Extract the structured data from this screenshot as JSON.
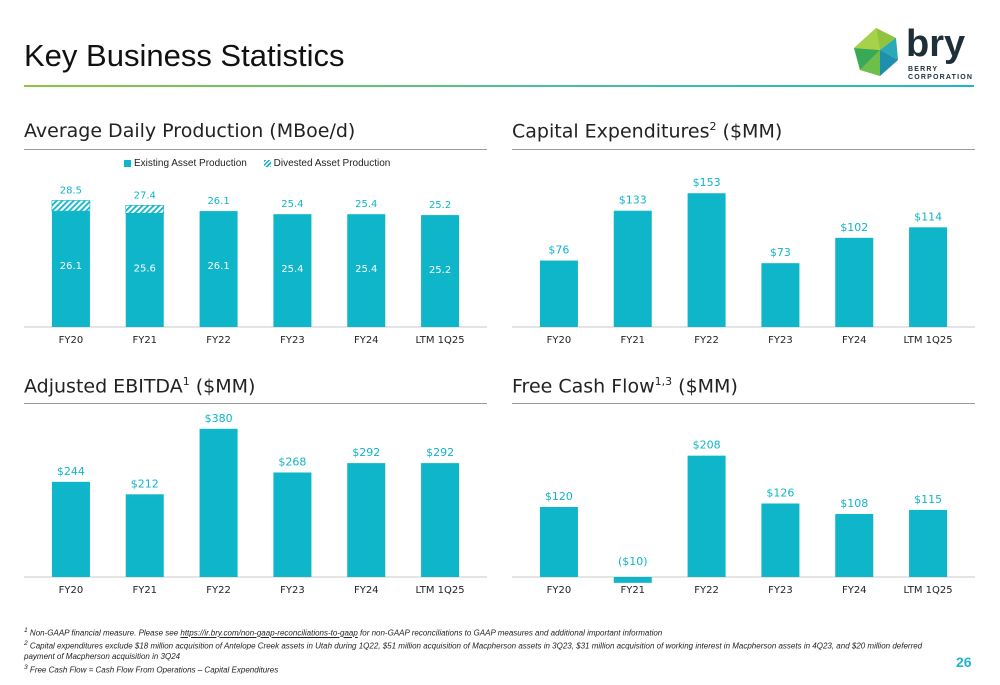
{
  "page": {
    "title": "Key Business Statistics",
    "page_number": "26"
  },
  "logo": {
    "wordmark": "bry",
    "subline1": "BERRY",
    "subline2": "CORPORATION"
  },
  "colors": {
    "bar": "#0fb5c9",
    "label": "#0fb5c9",
    "axis": "#c8c8c8",
    "tick": "#222222",
    "inner_label": "#ffffff"
  },
  "panels": {
    "production": {
      "title": "Average Daily Production (MBoe/d)",
      "sup": ""
    },
    "capex": {
      "title": "Capital Expenditures",
      "sup": "2",
      "suffix": " ($MM)"
    },
    "ebitda": {
      "title": "Adjusted EBITDA",
      "sup": "1",
      "suffix": " ($MM)"
    },
    "fcf": {
      "title": "Free Cash Flow",
      "sup": "1,3",
      "suffix": " ($MM)"
    }
  },
  "chart_data": [
    {
      "type": "bar",
      "stacked": true,
      "categories": [
        "FY20",
        "FY21",
        "FY22",
        "FY23",
        "FY24",
        "LTM 1Q25"
      ],
      "series": [
        {
          "name": "Existing Asset Production",
          "values": [
            26.1,
            25.6,
            26.1,
            25.4,
            25.4,
            25.2
          ]
        },
        {
          "name": "Divested Asset Production",
          "values": [
            2.4,
            1.8,
            0,
            0,
            0,
            0
          ]
        }
      ],
      "total_labels": [
        "28.5",
        "27.4",
        "26.1",
        "25.4",
        "25.4",
        "25.2"
      ],
      "inner_labels": [
        "26.1",
        "25.6",
        "26.1",
        "25.4",
        "25.4",
        "25.2"
      ],
      "ylim": [
        0,
        34
      ],
      "legend": "top"
    },
    {
      "type": "bar",
      "categories": [
        "FY20",
        "FY21",
        "FY22",
        "FY23",
        "FY24",
        "LTM 1Q25"
      ],
      "values": [
        76,
        133,
        153,
        73,
        102,
        114
      ],
      "labels": [
        "$76",
        "$133",
        "$153",
        "$73",
        "$102",
        "$114"
      ],
      "ylim": [
        0,
        175
      ]
    },
    {
      "type": "bar",
      "categories": [
        "FY20",
        "FY21",
        "FY22",
        "FY23",
        "FY24",
        "LTM 1Q25"
      ],
      "values": [
        244,
        212,
        380,
        268,
        292,
        292
      ],
      "labels": [
        "$244",
        "$212",
        "$380",
        "$268",
        "$292",
        "$292"
      ],
      "ylim": [
        0,
        400
      ]
    },
    {
      "type": "bar",
      "categories": [
        "FY20",
        "FY21",
        "FY22",
        "FY23",
        "FY24",
        "LTM 1Q25"
      ],
      "values": [
        120,
        -10,
        208,
        126,
        108,
        115
      ],
      "labels": [
        "$120",
        "($10)",
        "$208",
        "$126",
        "$108",
        "$115"
      ],
      "ylim": [
        -10,
        230
      ]
    }
  ],
  "footnotes": {
    "f1_prefix": "1",
    "f1_text_a": " Non-GAAP financial measure. Please see ",
    "f1_link": "https://ir.bry.com/non-gaap-reconciliations-to-gaap",
    "f1_text_b": " for non-GAAP reconciliations to GAAP measures and additional important information",
    "f2_prefix": "2",
    "f2_text": " Capital expenditures exclude $18 million acquisition of Antelope Creek assets in Utah during 1Q22, $51 million acquisition of Macpherson assets in 3Q23, $31 million acquisition of working interest in Macpherson assets in 4Q23, and $20 million deferred payment of Macpherson acquisition in 3Q24",
    "f3_prefix": "3",
    "f3_text": " Free Cash Flow = Cash Flow From Operations – Capital Expenditures"
  }
}
